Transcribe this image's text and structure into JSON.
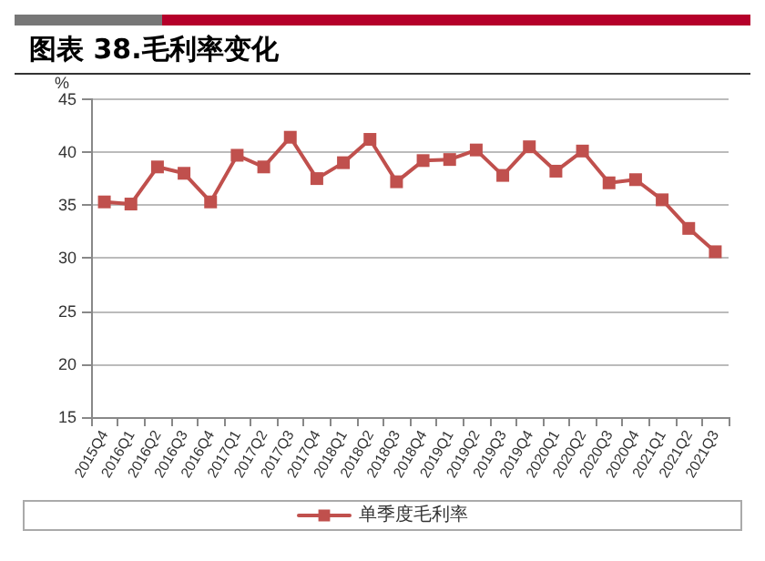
{
  "chart_data": {
    "type": "line",
    "title": "图表 38.毛利率变化",
    "ylabel": "%",
    "categories": [
      "2015Q4",
      "2016Q1",
      "2016Q2",
      "2016Q3",
      "2016Q4",
      "2017Q1",
      "2017Q2",
      "2017Q3",
      "2017Q4",
      "2018Q1",
      "2018Q2",
      "2018Q3",
      "2018Q4",
      "2019Q1",
      "2019Q2",
      "2019Q3",
      "2019Q4",
      "2020Q1",
      "2020Q2",
      "2020Q3",
      "2020Q4",
      "2021Q1",
      "2021Q2",
      "2021Q3"
    ],
    "series": [
      {
        "name": "单季度毛利率",
        "color": "#c0504d",
        "values": [
          35.3,
          35.1,
          38.6,
          38.0,
          35.3,
          39.7,
          38.6,
          41.4,
          37.5,
          39.0,
          41.2,
          37.2,
          39.2,
          39.3,
          40.2,
          37.8,
          40.5,
          38.2,
          40.1,
          37.1,
          37.4,
          35.5,
          32.8,
          30.6
        ]
      }
    ],
    "ylim": [
      15,
      45
    ],
    "yticks": [
      15,
      20,
      25,
      30,
      35,
      40,
      45
    ],
    "grid": "y",
    "legend": "bottom",
    "marker": "square",
    "line_style": "solid"
  }
}
